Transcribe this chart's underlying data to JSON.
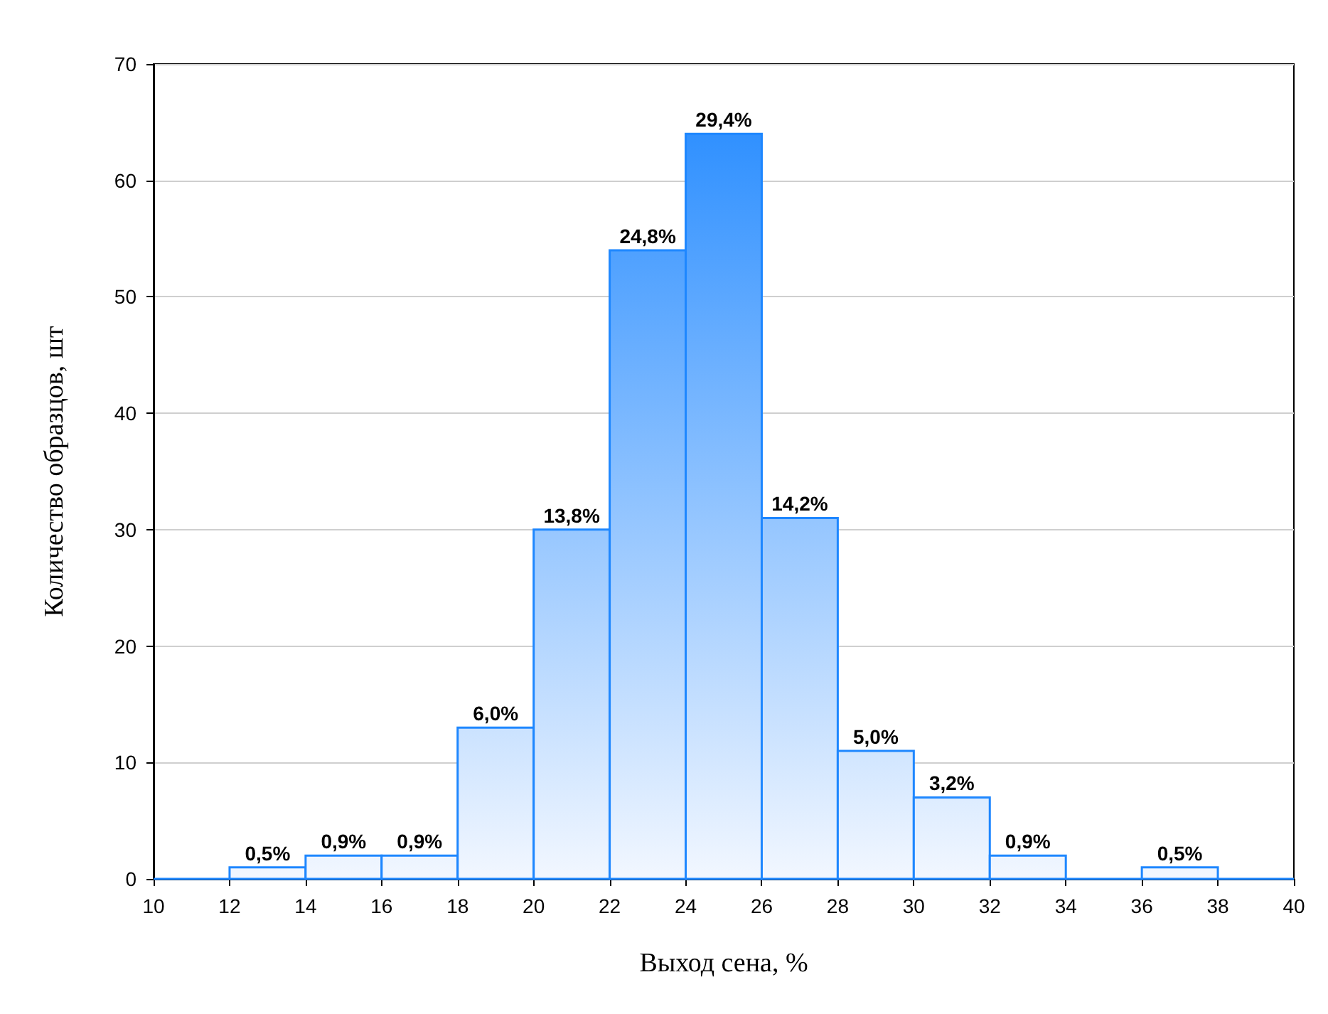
{
  "chart_data": {
    "type": "histogram",
    "xlabel": "Выход сена, %",
    "ylabel": "Количество образцов, шт",
    "bins": [
      10,
      12,
      14,
      16,
      18,
      20,
      22,
      24,
      26,
      28,
      30,
      32,
      34,
      36,
      38,
      40
    ],
    "values": [
      0,
      1,
      2,
      2,
      13,
      30,
      54,
      64,
      31,
      11,
      7,
      2,
      0,
      1,
      0
    ],
    "annotations": [
      {
        "text": "0,5%",
        "x": 13,
        "y": 1
      },
      {
        "text": "0,9%",
        "x": 15,
        "y": 2
      },
      {
        "text": "0,9%",
        "x": 17,
        "y": 2
      },
      {
        "text": "6,0%",
        "x": 19,
        "y": 13
      },
      {
        "text": "13,8%",
        "x": 21,
        "y": 30
      },
      {
        "text": "24,8%",
        "x": 23,
        "y": 54
      },
      {
        "text": "29,4%",
        "x": 25,
        "y": 64
      },
      {
        "text": "14,2%",
        "x": 27,
        "y": 31
      },
      {
        "text": "5,0%",
        "x": 29,
        "y": 11
      },
      {
        "text": "3,2%",
        "x": 31,
        "y": 7
      },
      {
        "text": "0,9%",
        "x": 33,
        "y": 2
      },
      {
        "text": "0,5%",
        "x": 37,
        "y": 1
      }
    ],
    "color": "#1e87ff",
    "xlim": [
      10,
      40
    ],
    "xticks": [
      10,
      12,
      14,
      16,
      18,
      20,
      22,
      24,
      26,
      28,
      30,
      32,
      34,
      36,
      38,
      40
    ],
    "ylim": [
      0,
      70
    ],
    "yticks": [
      0,
      10,
      20,
      30,
      40,
      50,
      60,
      70
    ],
    "grid": "y"
  }
}
